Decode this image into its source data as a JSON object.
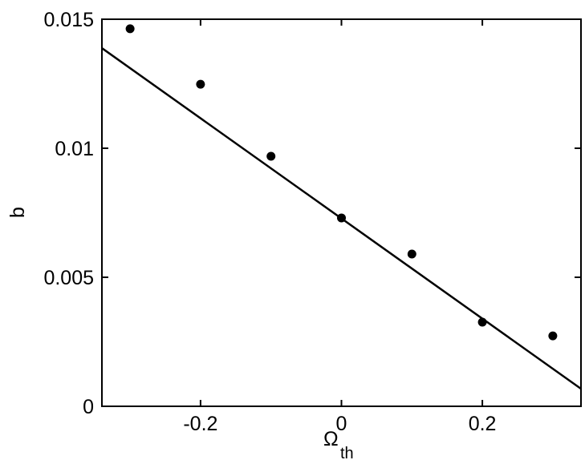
{
  "chart_data": {
    "type": "scatter",
    "xlabel": "Ω",
    "xlabel_sub": "th",
    "ylabel": "b",
    "x": [
      -0.3,
      -0.2,
      -0.1,
      0,
      0.1,
      0.2,
      0.3
    ],
    "values": [
      0.01463,
      0.01248,
      0.00969,
      0.0073,
      0.0059,
      0.00326,
      0.00273
    ],
    "color": "#000000",
    "fit": {
      "x": [
        -0.34,
        0.34
      ],
      "values": [
        0.01388,
        0.00068
      ],
      "color": "#000000"
    },
    "xlim": [
      -0.34,
      0.34
    ],
    "ylim": [
      0,
      0.015
    ],
    "xticks": [
      -0.2,
      0,
      0.2
    ],
    "yticks": [
      0,
      0.005,
      0.01,
      0.015
    ],
    "grid": false
  }
}
